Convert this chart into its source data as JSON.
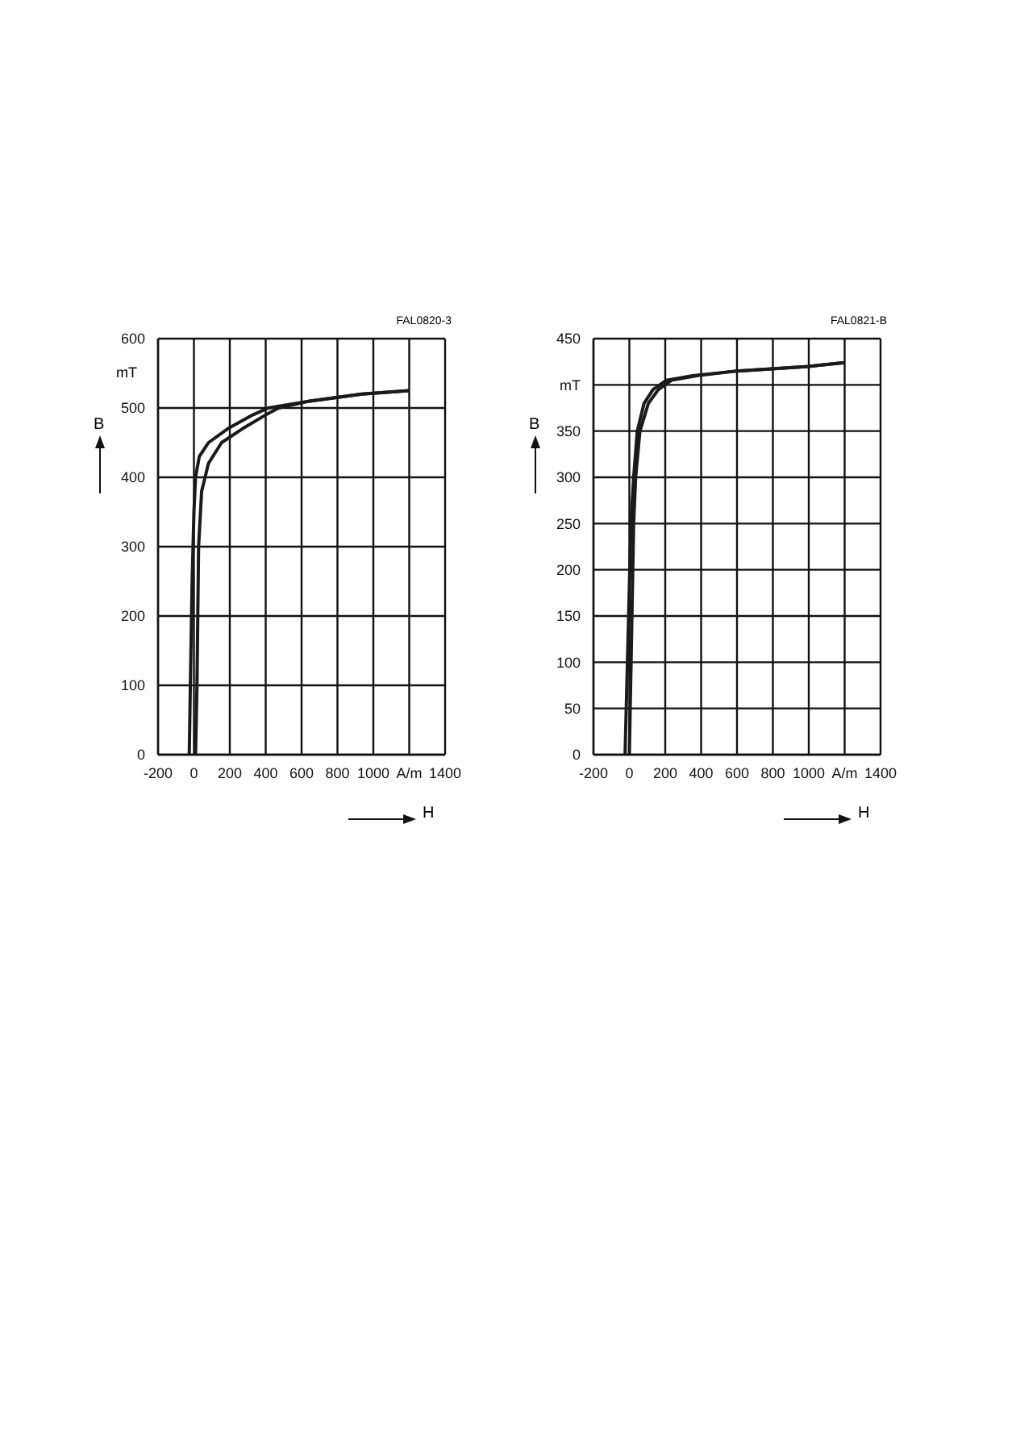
{
  "chart_data": [
    {
      "type": "line",
      "xlabel": "H",
      "ylabel": "B",
      "annotations": [
        "FAL0820-3",
        "mT"
      ],
      "series": [
        {
          "color": "#1a1a1a",
          "x": [
            -26,
            -20,
            -10,
            0,
            9,
            30,
            81,
            188,
            328,
            414,
            646,
            936,
            1200
          ],
          "values": [
            0,
            100,
            250,
            350,
            400,
            430,
            450,
            470,
            490,
            500,
            510,
            520,
            525
          ]
        },
        {
          "color": "#1a1a1a",
          "x": [
            9,
            17,
            26,
            43,
            81,
            154,
            270,
            400,
            472,
            646,
            936,
            1200
          ],
          "values": [
            0,
            100,
            300,
            380,
            420,
            450,
            470,
            490,
            500,
            510,
            520,
            525
          ]
        }
      ],
      "xlim": [
        -200,
        1400
      ],
      "xticks": [
        -200,
        0,
        200,
        400,
        600,
        800,
        1000,
        {
          "value": 1200,
          "label": "A/m"
        },
        1400
      ],
      "ylim": [
        0,
        600
      ],
      "yticks": [
        0,
        100,
        200,
        300,
        400,
        500,
        600
      ],
      "grid": true
    },
    {
      "type": "line",
      "xlabel": "H",
      "ylabel": "B",
      "annotations": [
        "FAL0821-B"
      ],
      "series": [
        {
          "color": "#1a1a1a",
          "x": [
            -24,
            9,
            24,
            44,
            82,
            132,
            206,
            353,
            600,
            1000,
            1200
          ],
          "values": [
            0,
            250,
            300,
            350,
            380,
            395,
            405,
            410,
            415,
            420,
            424
          ]
        },
        {
          "color": "#1a1a1a",
          "x": [
            0,
            24,
            35,
            59,
            106,
            162,
            235,
            382,
            600,
            1000,
            1200
          ],
          "values": [
            0,
            250,
            300,
            350,
            380,
            395,
            405,
            410,
            415,
            420,
            424
          ]
        }
      ],
      "xlim": [
        -200,
        1400
      ],
      "xticks": [
        -200,
        0,
        200,
        400,
        600,
        800,
        1000,
        {
          "value": 1200,
          "label": "A/m"
        },
        1400
      ],
      "ylim": [
        0,
        450
      ],
      "yticks": [
        0,
        50,
        100,
        150,
        200,
        250,
        300,
        350,
        {
          "value": 400,
          "label": "mT"
        },
        450
      ],
      "grid": true
    }
  ]
}
